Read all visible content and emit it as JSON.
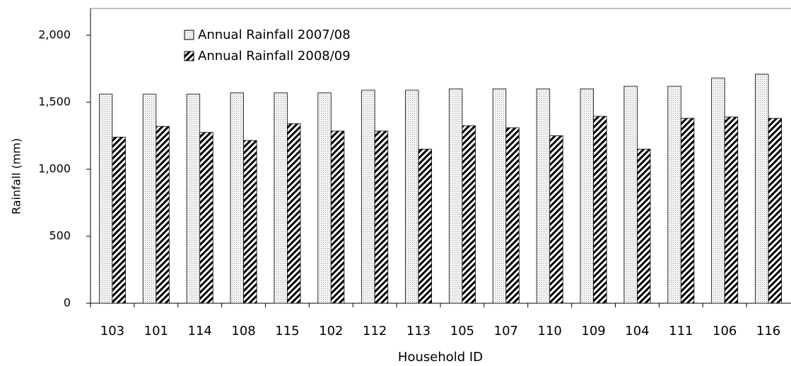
{
  "chart_data": {
    "type": "bar",
    "ylabel": "Rainfall (mm)",
    "xlabel": "Household ID",
    "categories": [
      "103",
      "101",
      "114",
      "108",
      "115",
      "102",
      "112",
      "113",
      "105",
      "107",
      "110",
      "109",
      "104",
      "111",
      "106",
      "116"
    ],
    "series": [
      {
        "name": "Annual Rainfall 2007/08",
        "color": "#000000",
        "pattern": "dots",
        "values": [
          1560,
          1560,
          1560,
          1570,
          1570,
          1570,
          1590,
          1590,
          1600,
          1600,
          1600,
          1600,
          1620,
          1620,
          1680,
          1710
        ]
      },
      {
        "name": "Annual Rainfall 2008/09",
        "color": "#000000",
        "pattern": "hatch",
        "values": [
          1240,
          1320,
          1275,
          1215,
          1340,
          1285,
          1285,
          1150,
          1325,
          1310,
          1250,
          1395,
          1150,
          1380,
          1390,
          1380
        ]
      }
    ],
    "ylim": [
      0,
      2200
    ],
    "yticks": [
      0,
      {
        "value": 500,
        "label": "500"
      },
      {
        "value": 1000,
        "label": "1,000"
      },
      {
        "value": 1500,
        "label": "1,500"
      },
      {
        "value": 2000,
        "label": "2,000"
      }
    ],
    "grid": false,
    "legend": "top-left"
  }
}
